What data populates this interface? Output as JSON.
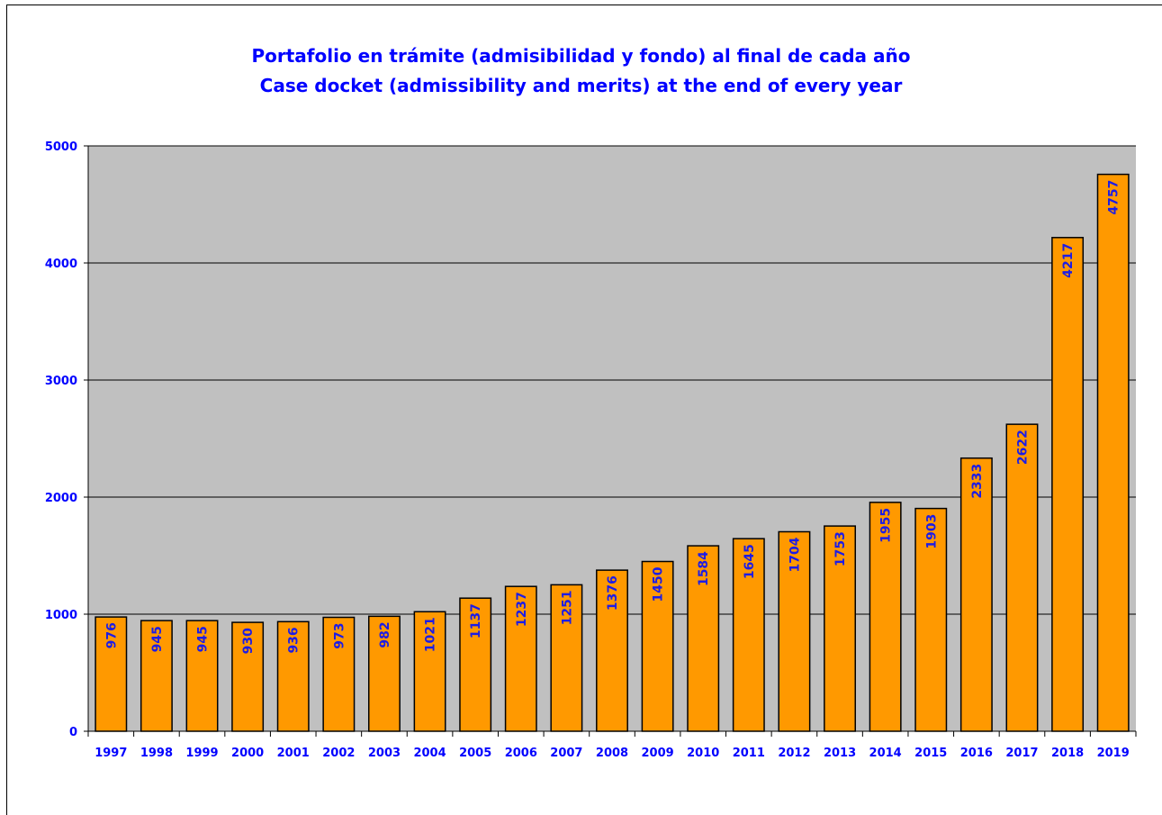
{
  "title_line1": "Portafolio en trámite (admisibilidad y fondo) al final de cada año",
  "title_line2": "Case docket (admissibility and merits) at the end of every year",
  "colors": {
    "text": "#0000ff",
    "bar_fill": "#ff9900",
    "bar_stroke": "#000000",
    "plot_bg": "#c0c0c0",
    "bar_label": "#1c1ce6"
  },
  "chart_data": {
    "type": "bar",
    "title": "Portafolio en trámite (admisibilidad y fondo) al final de cada año / Case docket (admissibility and merits) at the end of every year",
    "categories": [
      "1997",
      "1998",
      "1999",
      "2000",
      "2001",
      "2002",
      "2003",
      "2004",
      "2005",
      "2006",
      "2007",
      "2008",
      "2009",
      "2010",
      "2011",
      "2012",
      "2013",
      "2014",
      "2015",
      "2016",
      "2017",
      "2018",
      "2019"
    ],
    "values": [
      976,
      945,
      945,
      930,
      936,
      973,
      982,
      1021,
      1137,
      1237,
      1251,
      1376,
      1450,
      1584,
      1645,
      1704,
      1753,
      1955,
      1903,
      2333,
      2622,
      4217,
      4757
    ],
    "ylim": [
      0,
      5000
    ],
    "yticks": [
      0,
      1000,
      2000,
      3000,
      4000,
      5000
    ],
    "grid": true,
    "data_labels": "inside-end, rotated vertical",
    "legend": "none"
  }
}
